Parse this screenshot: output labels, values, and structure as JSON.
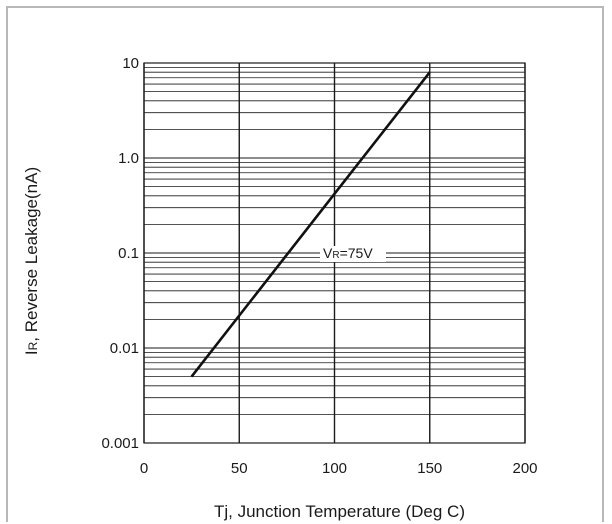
{
  "chart_data": {
    "type": "line",
    "title": "",
    "xlabel": "Tj, Junction Temperature (Deg C)",
    "ylabel_main": "I",
    "ylabel_sub": "R",
    "ylabel_rest": ", Reverse Leakage(nA)",
    "x_ticks": [
      0,
      50,
      100,
      150,
      200
    ],
    "x_tick_labels": [
      "0",
      "50",
      "100",
      "150",
      "200"
    ],
    "y_scale": "log",
    "y_ticks": [
      0.001,
      0.01,
      0.1,
      1,
      10
    ],
    "y_tick_labels": [
      "0.001",
      "0.01",
      "0.1",
      "1.0",
      "10"
    ],
    "xlim": [
      0,
      200
    ],
    "ylim": [
      0.001,
      10
    ],
    "grid": true,
    "series": [
      {
        "name_main": "V",
        "name_sub": "R",
        "name_rest": "=75V",
        "x": [
          25,
          50,
          100,
          150
        ],
        "y": [
          0.005,
          0.022,
          0.42,
          8
        ]
      }
    ],
    "colors": {
      "line": "#111111",
      "grid": "#1a1a1a",
      "frame": "#b8b8b8"
    }
  }
}
